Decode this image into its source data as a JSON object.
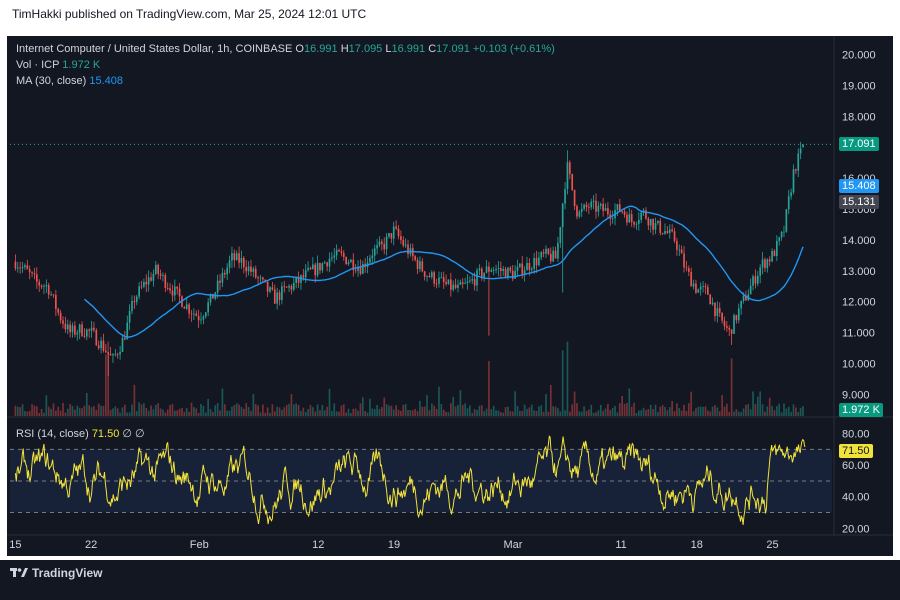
{
  "header": {
    "text": "TimHakki published on TradingView.com, Mar 25, 2024 12:01 UTC"
  },
  "legend": {
    "symbol": "Internet Computer / United States Dollar, 1h, COINBASE",
    "o_label": "O",
    "o_value": "16.991",
    "h_label": "H",
    "h_value": "17.095",
    "l_label": "L",
    "l_value": "16.991",
    "c_label": "C",
    "c_value": "17.091",
    "change": "+0.103 (+0.61%)",
    "vol_label": "Vol · ICP",
    "vol_value": "1.972 K",
    "ma_label": "MA (30, close)",
    "ma_value": "15.408",
    "rsi_label": "RSI (14, close)",
    "rsi_value": "71.50",
    "rsi_extra": "∅  ∅"
  },
  "price_tags": {
    "last": "17.091",
    "ma": "15.408",
    "other": "15.131",
    "volume": "1.972 K",
    "rsi": "71.50"
  },
  "footer": {
    "brand": "TradingView"
  },
  "colors": {
    "up": "#26a69a",
    "down": "#ef5350",
    "ma": "#2196f3",
    "rsi": "#f2e33a",
    "background": "#131722"
  },
  "chart_data": [
    {
      "type": "candlestick",
      "title": "Internet Computer / United States Dollar, 1h, COINBASE",
      "y_axis": {
        "ticks": [
          "9.000",
          "10.000",
          "11.000",
          "12.000",
          "13.000",
          "14.000",
          "15.000",
          "16.000",
          "17.000",
          "18.000",
          "19.000",
          "20.000"
        ],
        "range": [
          8.3,
          20.6
        ]
      },
      "x_axis": {
        "ticks": [
          {
            "label": "15",
            "t": 0
          },
          {
            "label": "22",
            "t": 7
          },
          {
            "label": "Feb",
            "t": 17
          },
          {
            "label": "12",
            "t": 28
          },
          {
            "label": "19",
            "t": 35
          },
          {
            "label": "Mar",
            "t": 46
          },
          {
            "label": "11",
            "t": 56
          },
          {
            "label": "18",
            "t": 63
          },
          {
            "label": "25",
            "t": 70
          }
        ],
        "range": [
          -0.5,
          75.5
        ]
      },
      "close_path": [
        [
          0,
          13.3
        ],
        [
          1,
          13.0
        ],
        [
          2,
          12.6
        ],
        [
          3,
          12.5
        ],
        [
          4,
          11.6
        ],
        [
          5,
          11.0
        ],
        [
          6,
          11.1
        ],
        [
          7,
          11.0
        ],
        [
          8,
          10.6
        ],
        [
          9,
          10.1
        ],
        [
          10,
          10.8
        ],
        [
          11,
          12.1
        ],
        [
          12,
          12.6
        ],
        [
          13,
          13.0
        ],
        [
          14,
          12.6
        ],
        [
          15,
          12.2
        ],
        [
          16,
          11.8
        ],
        [
          17,
          11.5
        ],
        [
          18,
          12.0
        ],
        [
          19,
          12.7
        ],
        [
          20,
          13.4
        ],
        [
          21,
          13.3
        ],
        [
          22,
          12.9
        ],
        [
          23,
          12.5
        ],
        [
          24,
          12.1
        ],
        [
          25,
          12.4
        ],
        [
          26,
          12.6
        ],
        [
          27,
          12.9
        ],
        [
          28,
          13.1
        ],
        [
          29,
          13.4
        ],
        [
          30,
          13.5
        ],
        [
          31,
          13.3
        ],
        [
          32,
          13.1
        ],
        [
          33,
          13.6
        ],
        [
          34,
          13.8
        ],
        [
          35,
          14.3
        ],
        [
          36,
          13.8
        ],
        [
          37,
          13.3
        ],
        [
          38,
          12.9
        ],
        [
          39,
          12.7
        ],
        [
          40,
          12.5
        ],
        [
          41,
          12.4
        ],
        [
          42,
          12.6
        ],
        [
          43,
          12.9
        ],
        [
          44,
          13.1
        ],
        [
          45,
          13.0
        ],
        [
          46,
          12.9
        ],
        [
          47,
          13.1
        ],
        [
          48,
          13.3
        ],
        [
          49,
          13.5
        ],
        [
          50,
          13.4
        ],
        [
          51,
          16.4
        ],
        [
          52,
          14.8
        ],
        [
          53,
          15.1
        ],
        [
          54,
          15.0
        ],
        [
          55,
          14.9
        ],
        [
          56,
          15.0
        ],
        [
          57,
          14.6
        ],
        [
          58,
          14.9
        ],
        [
          59,
          14.5
        ],
        [
          60,
          14.3
        ],
        [
          61,
          14.0
        ],
        [
          62,
          13.0
        ],
        [
          63,
          12.4
        ],
        [
          64,
          12.3
        ],
        [
          65,
          11.5
        ],
        [
          66,
          11.0
        ],
        [
          67,
          11.8
        ],
        [
          68,
          12.5
        ],
        [
          69,
          13.2
        ],
        [
          70,
          13.5
        ],
        [
          71,
          14.2
        ],
        [
          72,
          16.3
        ],
        [
          73,
          17.09
        ]
      ],
      "ma_30": 15.408,
      "last_close": 17.091,
      "volume_last": "1.972 K"
    },
    {
      "type": "line",
      "title": "RSI (14, close)",
      "y_axis": {
        "ticks": [
          "20.00",
          "40.00",
          "60.00",
          "80.00"
        ],
        "range": [
          17,
          88
        ]
      },
      "bands": [
        30,
        50,
        70
      ],
      "last_value": 71.5,
      "approx_range": [
        22,
        84
      ]
    }
  ]
}
